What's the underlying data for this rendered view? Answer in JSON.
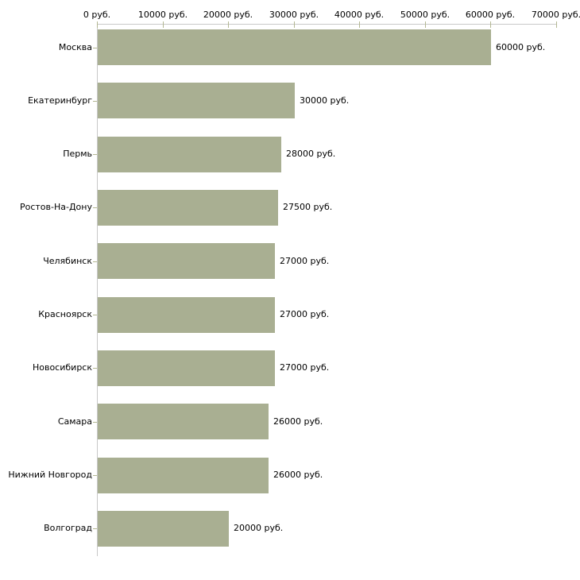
{
  "chart_data": {
    "type": "bar",
    "orientation": "horizontal",
    "title": "",
    "xlabel": "",
    "ylabel": "",
    "unit": "руб.",
    "categories": [
      "Москва",
      "Екатеринбург",
      "Пермь",
      "Ростов-На-Дону",
      "Челябинск",
      "Красноярск",
      "Новосибирск",
      "Самара",
      "Нижний Новгород",
      "Волгоград"
    ],
    "values": [
      60000,
      30000,
      28000,
      27500,
      27000,
      27000,
      27000,
      26000,
      26000,
      20000
    ],
    "value_labels": [
      "60000 руб.",
      "30000 руб.",
      "28000 руб.",
      "27500 руб.",
      "27000 руб.",
      "27000 руб.",
      "27000 руб.",
      "26000 руб.",
      "26000 руб.",
      "20000 руб."
    ],
    "x_axis": {
      "position": "top",
      "min": 0,
      "max": 70000,
      "tick_step": 10000,
      "tick_labels": [
        "0 руб.",
        "10000 руб.",
        "20000 руб.",
        "30000 руб.",
        "40000 руб.",
        "50000 руб.",
        "60000 руб.",
        "70000 руб."
      ]
    },
    "grid": false,
    "legend": false,
    "colors": {
      "bar": "#a9af92",
      "axis_line": "#c8c8c8",
      "tick": "#b3b792",
      "text": "#000000",
      "background": "#ffffff"
    }
  }
}
